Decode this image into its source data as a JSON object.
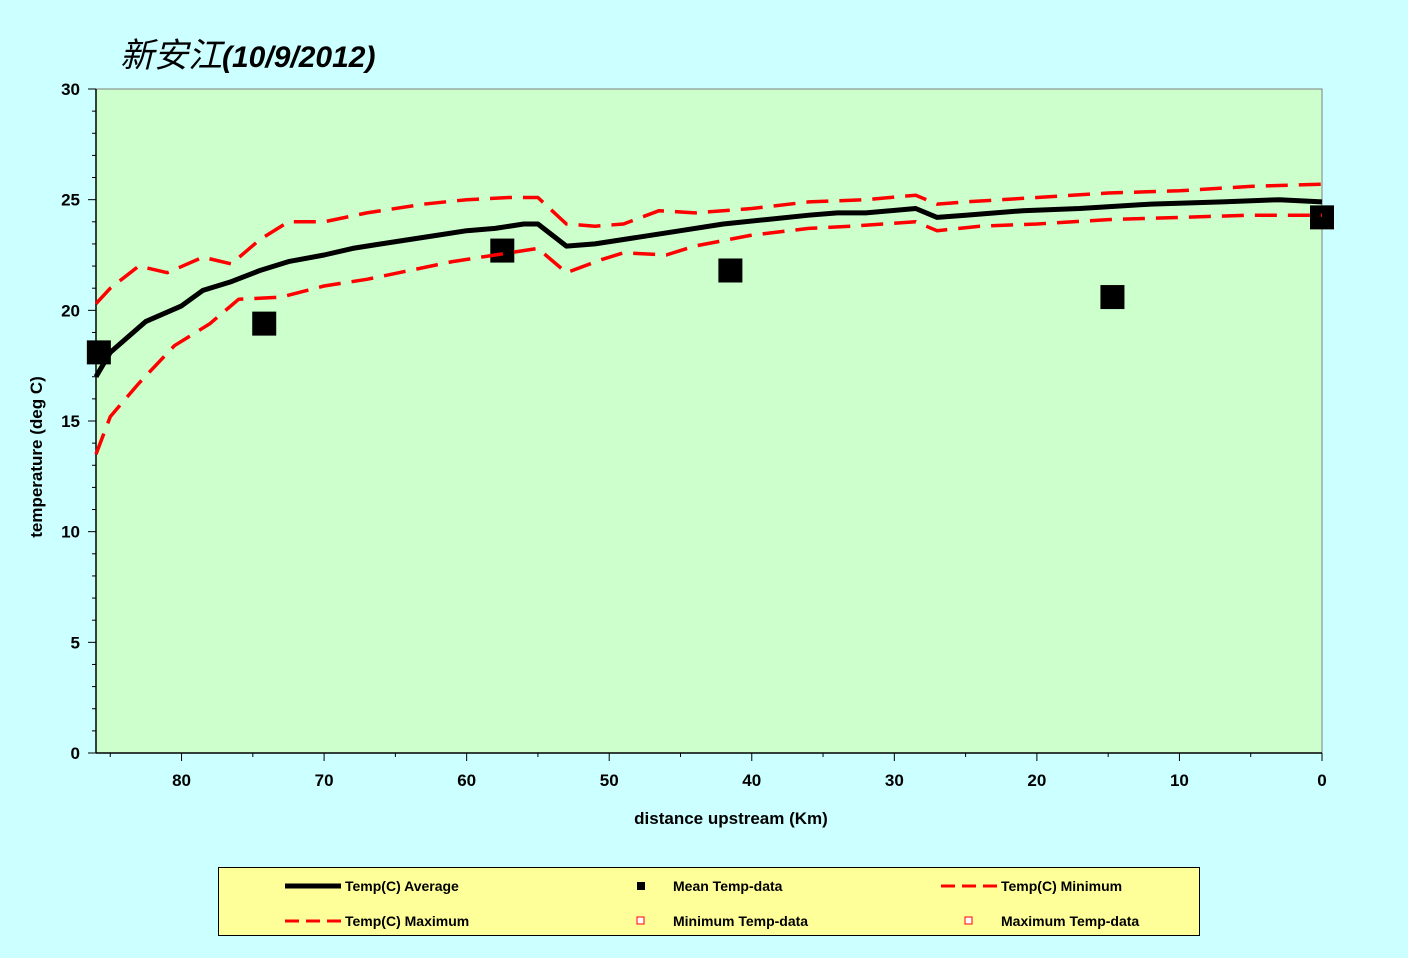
{
  "title": {
    "river": "新安江",
    "date": "(10/9/2012)"
  },
  "chart_data": {
    "type": "line",
    "title": "新安江(10/9/2012)",
    "xlabel": "distance upstream (Km)",
    "ylabel": "temperature (deg C)",
    "xlim": [
      86,
      0
    ],
    "ylim": [
      0,
      30
    ],
    "x_ticks": [
      80,
      70,
      60,
      50,
      40,
      30,
      20,
      10,
      0
    ],
    "y_ticks": [
      0,
      5,
      10,
      15,
      20,
      25,
      30
    ],
    "grid": false,
    "legend_position": "bottom",
    "colors": {
      "average": "#000000",
      "minmax": "#ff0000",
      "mean_data": "#000000",
      "min_data": "#ff0000",
      "max_data": "#ff0000",
      "plot_background": "#ccffcc",
      "page_background": "#ccffff",
      "legend_background": "#ffff99"
    },
    "series": [
      {
        "name": "Temp(C) Average",
        "style": "solid",
        "points": [
          [
            86,
            17.0
          ],
          [
            85,
            18.1
          ],
          [
            82.5,
            19.5
          ],
          [
            80,
            20.2
          ],
          [
            78.5,
            20.9
          ],
          [
            76.5,
            21.3
          ],
          [
            74.5,
            21.8
          ],
          [
            72.5,
            22.2
          ],
          [
            70,
            22.5
          ],
          [
            68,
            22.8
          ],
          [
            66,
            23.0
          ],
          [
            64,
            23.2
          ],
          [
            62,
            23.4
          ],
          [
            60,
            23.6
          ],
          [
            58,
            23.7
          ],
          [
            56,
            23.9
          ],
          [
            55,
            23.9
          ],
          [
            53,
            22.9
          ],
          [
            51,
            23.0
          ],
          [
            48,
            23.3
          ],
          [
            45,
            23.6
          ],
          [
            42,
            23.9
          ],
          [
            39,
            24.1
          ],
          [
            36,
            24.3
          ],
          [
            34,
            24.4
          ],
          [
            32,
            24.4
          ],
          [
            28.5,
            24.6
          ],
          [
            27,
            24.2
          ],
          [
            25,
            24.3
          ],
          [
            21,
            24.5
          ],
          [
            17,
            24.6
          ],
          [
            12,
            24.8
          ],
          [
            7,
            24.9
          ],
          [
            3,
            25.0
          ],
          [
            0,
            24.9
          ]
        ]
      },
      {
        "name": "Mean Temp-data",
        "style": "marker",
        "points": [
          [
            85.8,
            18.1
          ],
          [
            74.2,
            19.4
          ],
          [
            57.5,
            22.7
          ],
          [
            41.5,
            21.8
          ],
          [
            14.7,
            20.6
          ],
          [
            0,
            24.2
          ]
        ]
      },
      {
        "name": "Temp(C) Minimum",
        "style": "dashed",
        "points": [
          [
            86,
            13.5
          ],
          [
            85,
            15.2
          ],
          [
            83,
            16.7
          ],
          [
            80.5,
            18.4
          ],
          [
            78,
            19.4
          ],
          [
            76,
            20.5
          ],
          [
            73,
            20.6
          ],
          [
            70,
            21.1
          ],
          [
            67,
            21.4
          ],
          [
            64,
            21.8
          ],
          [
            61,
            22.2
          ],
          [
            58,
            22.5
          ],
          [
            55,
            22.8
          ],
          [
            53,
            21.7
          ],
          [
            50.5,
            22.3
          ],
          [
            49,
            22.6
          ],
          [
            46,
            22.5
          ],
          [
            44,
            22.9
          ],
          [
            40,
            23.4
          ],
          [
            36,
            23.7
          ],
          [
            33,
            23.8
          ],
          [
            28.5,
            24.0
          ],
          [
            27,
            23.6
          ],
          [
            24,
            23.8
          ],
          [
            20,
            23.9
          ],
          [
            15,
            24.1
          ],
          [
            10,
            24.2
          ],
          [
            5,
            24.3
          ],
          [
            0,
            24.3
          ]
        ]
      },
      {
        "name": "Temp(C) Maximum",
        "style": "dashed",
        "points": [
          [
            86,
            20.3
          ],
          [
            85,
            21.0
          ],
          [
            83,
            22.0
          ],
          [
            81,
            21.7
          ],
          [
            78.5,
            22.4
          ],
          [
            76.5,
            22.1
          ],
          [
            74.5,
            23.2
          ],
          [
            72.5,
            24.0
          ],
          [
            70,
            24.0
          ],
          [
            67,
            24.4
          ],
          [
            63,
            24.8
          ],
          [
            60,
            25.0
          ],
          [
            57,
            25.1
          ],
          [
            55,
            25.1
          ],
          [
            53,
            23.9
          ],
          [
            51,
            23.8
          ],
          [
            49,
            23.9
          ],
          [
            46.5,
            24.5
          ],
          [
            44,
            24.4
          ],
          [
            40,
            24.6
          ],
          [
            36,
            24.9
          ],
          [
            32,
            25.0
          ],
          [
            28.5,
            25.2
          ],
          [
            27,
            24.8
          ],
          [
            25,
            24.9
          ],
          [
            20,
            25.1
          ],
          [
            15,
            25.3
          ],
          [
            10,
            25.4
          ],
          [
            5,
            25.6
          ],
          [
            0,
            25.7
          ]
        ]
      },
      {
        "name": "Minimum Temp-data",
        "style": "hollow-marker",
        "points": []
      },
      {
        "name": "Maximum Temp-data",
        "style": "hollow-marker",
        "points": []
      }
    ]
  },
  "legend": {
    "items": [
      "Temp(C) Average",
      "Mean Temp-data",
      "Temp(C) Minimum",
      "Temp(C) Maximum",
      "Minimum Temp-data",
      "Maximum Temp-data"
    ]
  }
}
